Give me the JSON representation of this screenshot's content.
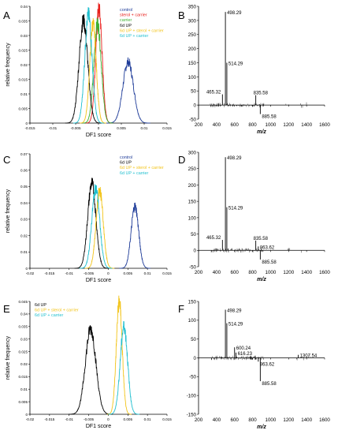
{
  "chart_data": [
    {
      "panel": "A",
      "type": "line",
      "xlabel": "DF1 score",
      "ylabel": "relative frequency",
      "xlim": [
        -0.015,
        0.015
      ],
      "ylim": [
        0,
        0.04
      ],
      "xticks": [
        "-0.015",
        "-0.01",
        "-0.005",
        "0",
        "0.005",
        "0.01",
        "0.015"
      ],
      "yticks": [
        "0",
        "0.005",
        "0.01",
        "0.015",
        "0.02",
        "0.025",
        "0.03",
        "0.035",
        "0.04"
      ],
      "legend_position": "top-right",
      "series": [
        {
          "name": "control",
          "color": "#1f3c99",
          "mean": 0.0065,
          "sd": 0.00115,
          "peak": 0.021
        },
        {
          "name": "sterol + carrier",
          "color": "#e8201c",
          "mean": 0.0001,
          "sd": 0.0007,
          "peak": 0.039
        },
        {
          "name": "carrier",
          "color": "#3cb030",
          "mean": -0.0002,
          "sd": 0.0008,
          "peak": 0.034
        },
        {
          "name": "6d UP",
          "color": "#000000",
          "mean": -0.0033,
          "sd": 0.00095,
          "peak": 0.035
        },
        {
          "name": "6d UP + sterol + carrier",
          "color": "#f2c41a",
          "mean": -0.0012,
          "sd": 0.0007,
          "peak": 0.034
        },
        {
          "name": "6d UP + carrier",
          "color": "#1fbfcf",
          "mean": -0.0022,
          "sd": 0.0008,
          "peak": 0.037
        }
      ]
    },
    {
      "panel": "B",
      "type": "bar",
      "xlabel": "m/z",
      "xlim": [
        200,
        1600
      ],
      "ylim": [
        -50,
        350
      ],
      "xticks": [
        "200",
        "400",
        "600",
        "800",
        "1000",
        "1200",
        "1400",
        "1600"
      ],
      "yticks": [
        "-50",
        "0",
        "50",
        "100",
        "150",
        "200",
        "250",
        "300",
        "350"
      ],
      "peaks": [
        {
          "x": 498.29,
          "y": 330,
          "label": "498.29"
        },
        {
          "x": 514.29,
          "y": 150,
          "label": "514.29"
        },
        {
          "x": 465.32,
          "y": 38,
          "label": "465.32"
        },
        {
          "x": 835.58,
          "y": 35,
          "label": "835.58"
        },
        {
          "x": 885.58,
          "y": -32,
          "label": "885.58"
        }
      ]
    },
    {
      "panel": "C",
      "type": "line",
      "xlabel": "DF1 score",
      "ylabel": "relative frequency",
      "xlim": [
        -0.02,
        0.015
      ],
      "ylim": [
        0,
        0.07
      ],
      "xticks": [
        "-0.02",
        "-0.015",
        "-0.01",
        "-0.005",
        "0",
        "0.005",
        "0.01",
        "0.015"
      ],
      "yticks": [
        "0",
        "0.01",
        "0.02",
        "0.03",
        "0.04",
        "0.05",
        "0.06",
        "0.07"
      ],
      "legend_position": "top-right",
      "series": [
        {
          "name": "control",
          "color": "#1f3c99",
          "mean": 0.0068,
          "sd": 0.00095,
          "peak": 0.038
        },
        {
          "name": "6d UP",
          "color": "#000000",
          "mean": -0.0042,
          "sd": 0.00105,
          "peak": 0.052
        },
        {
          "name": "6d UP + sterol + carrier",
          "color": "#f2c41a",
          "mean": -0.0022,
          "sd": 0.0009,
          "peak": 0.048
        },
        {
          "name": "6d UP + carrier",
          "color": "#1fbfcf",
          "mean": -0.0032,
          "sd": 0.001,
          "peak": 0.049
        }
      ]
    },
    {
      "panel": "D",
      "type": "bar",
      "xlabel": "m/z",
      "xlim": [
        200,
        1600
      ],
      "ylim": [
        -50,
        300
      ],
      "xticks": [
        "200",
        "400",
        "600",
        "800",
        "1000",
        "1200",
        "1400",
        "1600"
      ],
      "yticks": [
        "-50",
        "0",
        "50",
        "100",
        "150",
        "200",
        "250",
        "300"
      ],
      "peaks": [
        {
          "x": 498.29,
          "y": 285,
          "label": "498.29"
        },
        {
          "x": 514.29,
          "y": 132,
          "label": "514.29"
        },
        {
          "x": 465.32,
          "y": 32,
          "label": "465.32"
        },
        {
          "x": 835.58,
          "y": 30,
          "label": "835.58"
        },
        {
          "x": 863.62,
          "y": 12,
          "label": "863.62"
        },
        {
          "x": 885.58,
          "y": -28,
          "label": "885.58"
        }
      ]
    },
    {
      "panel": "E",
      "type": "line",
      "xlabel": "DF1 score",
      "ylabel": "relative frequency",
      "xlim": [
        -0.02,
        0.015
      ],
      "ylim": [
        0,
        0.045
      ],
      "xticks": [
        "-0.02",
        "-0.015",
        "-0.01",
        "-0.005",
        "0",
        "0.005",
        "0.01",
        "0.015"
      ],
      "yticks": [
        "0",
        "0.005",
        "0.01",
        "0.015",
        "0.02",
        "0.025",
        "0.03",
        "0.035",
        "0.04",
        "0.045"
      ],
      "legend_position": "top-left",
      "series": [
        {
          "name": "6d UP",
          "color": "#000000",
          "mean": -0.0045,
          "sd": 0.00135,
          "peak": 0.034
        },
        {
          "name": "6d UP + sterol + carrier",
          "color": "#f2c41a",
          "mean": 0.0028,
          "sd": 0.00075,
          "peak": 0.045
        },
        {
          "name": "6d UP + carrier",
          "color": "#1fbfcf",
          "mean": 0.004,
          "sd": 0.00095,
          "peak": 0.035
        }
      ]
    },
    {
      "panel": "F",
      "type": "bar",
      "xlabel": "m/z",
      "xlim": [
        200,
        1600
      ],
      "ylim": [
        -150,
        150
      ],
      "xticks": [
        "200",
        "400",
        "600",
        "800",
        "1000",
        "1200",
        "1400",
        "1600"
      ],
      "yticks": [
        "-150",
        "-100",
        "-50",
        "0",
        "50",
        "100",
        "150"
      ],
      "peaks": [
        {
          "x": 498.29,
          "y": 128,
          "label": "498.29"
        },
        {
          "x": 514.29,
          "y": 92,
          "label": "514.29"
        },
        {
          "x": 600.24,
          "y": 28,
          "label": "600.24"
        },
        {
          "x": 616.23,
          "y": 14,
          "label": "616.23"
        },
        {
          "x": 863.62,
          "y": -10,
          "label": "863.62"
        },
        {
          "x": 885.58,
          "y": -62,
          "label": "885.58"
        },
        {
          "x": 1307.54,
          "y": 8,
          "label": "1307.54"
        }
      ]
    }
  ]
}
